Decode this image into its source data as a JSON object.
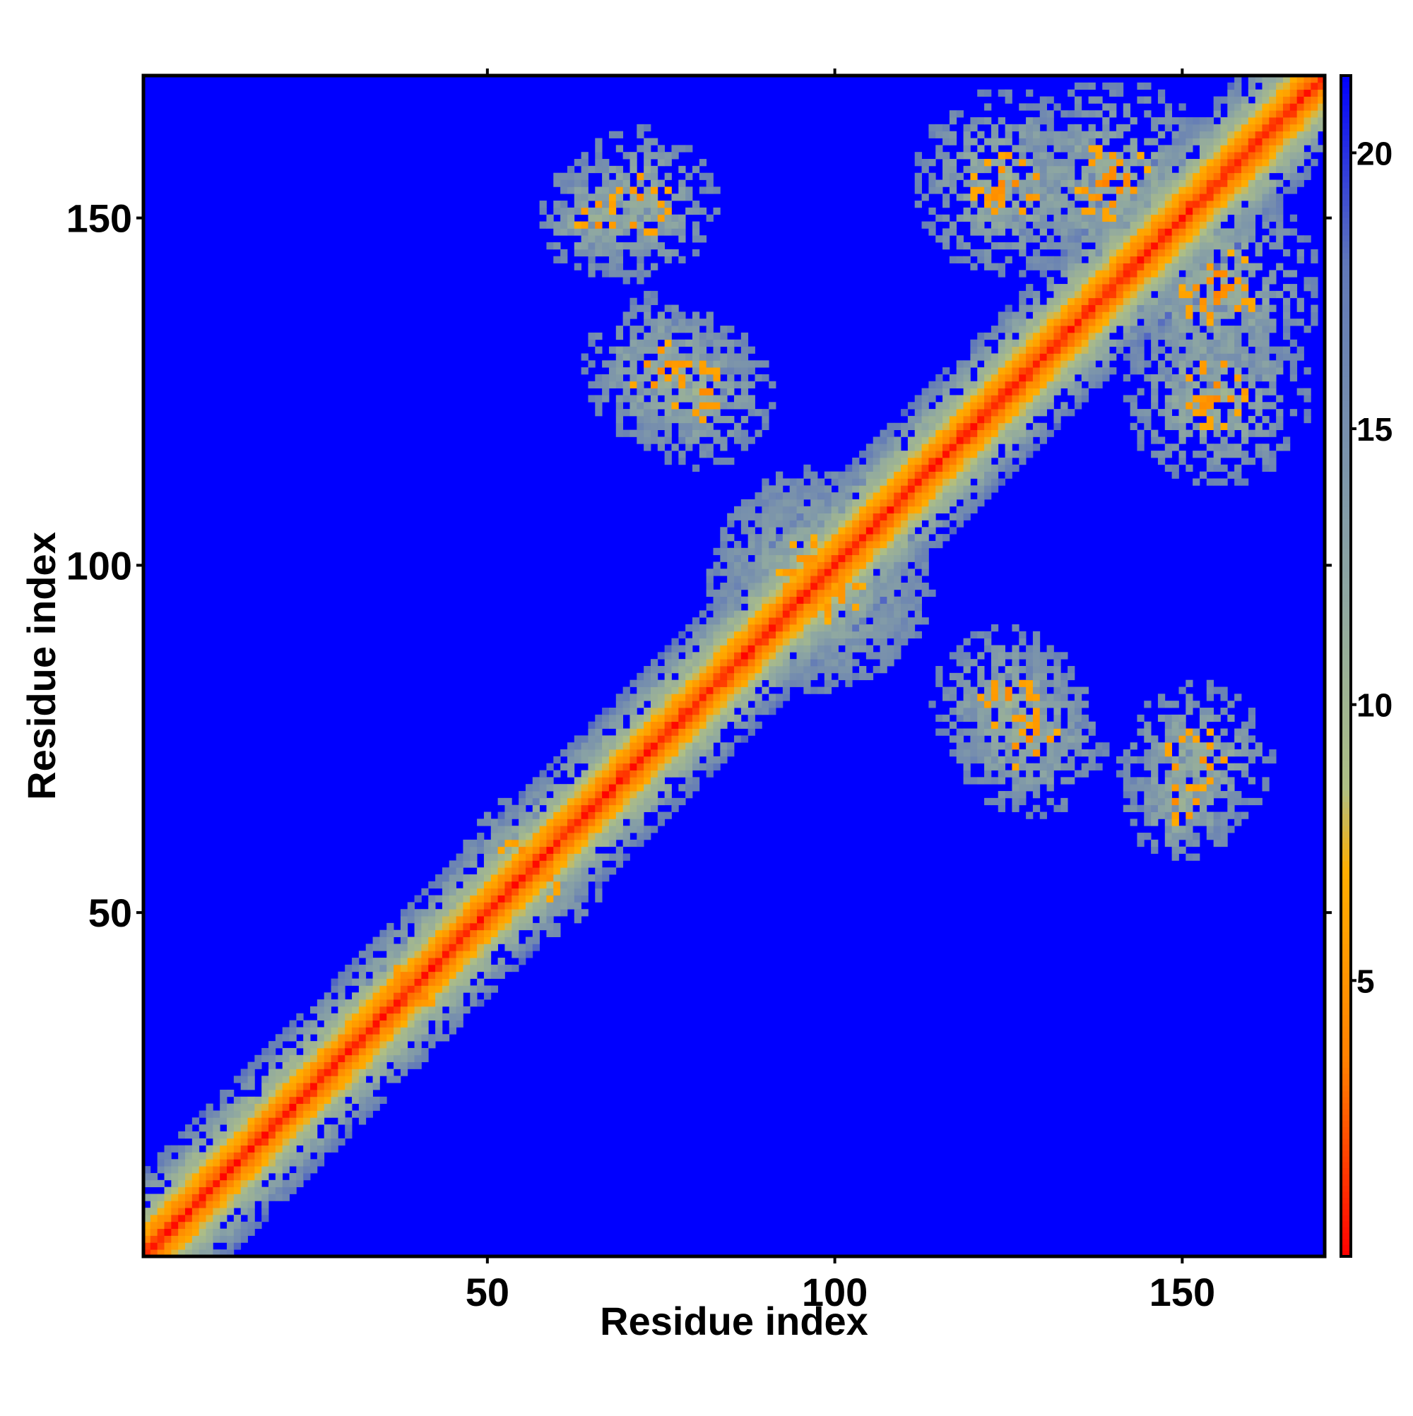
{
  "chart_data": {
    "type": "heatmap",
    "title": "",
    "xlabel": "Residue index",
    "ylabel": "Residue index",
    "xlim": [
      1,
      170
    ],
    "ylim": [
      1,
      170
    ],
    "x_ticks": [
      50,
      100,
      150
    ],
    "y_ticks": [
      50,
      100,
      150
    ],
    "x_tick_labels": [
      "50",
      "100",
      "150"
    ],
    "y_tick_labels": [
      "50",
      "100",
      "150"
    ],
    "colorbar": {
      "range": [
        0,
        21.4
      ],
      "ticks": [
        5,
        10,
        15,
        20
      ],
      "tick_labels": [
        "5",
        "10",
        "15",
        "20"
      ],
      "colors": [
        "#ff0000",
        "#ff7f00",
        "#ffae00",
        "#aebf85",
        "#8ea7a2",
        "#6078b8",
        "#0000ff"
      ],
      "color_stops": [
        0,
        3.5,
        7,
        8.5,
        12,
        18,
        21.4
      ]
    },
    "matrix_description_values": {
      "diagonal_band_halfwidth": 6,
      "diagonal_noise_halfwidth": 12,
      "off_diagonal_blocks": [
        {
          "x_center": 66,
          "y_center": 150,
          "spread": 7
        },
        {
          "x_center": 75,
          "y_center": 128,
          "spread": 9
        },
        {
          "x_center": 98,
          "y_center": 98,
          "spread": 13
        },
        {
          "x_center": 140,
          "y_center": 155,
          "spread": 12
        },
        {
          "x_center": 155,
          "y_center": 125,
          "spread": 11
        },
        {
          "x_center": 125,
          "y_center": 80,
          "spread": 9
        },
        {
          "x_center": 152,
          "y_center": 72,
          "spread": 9
        },
        {
          "x_center": 55,
          "y_center": 58,
          "spread": 7
        },
        {
          "x_center": 38,
          "y_center": 40,
          "spread": 6
        }
      ]
    }
  }
}
